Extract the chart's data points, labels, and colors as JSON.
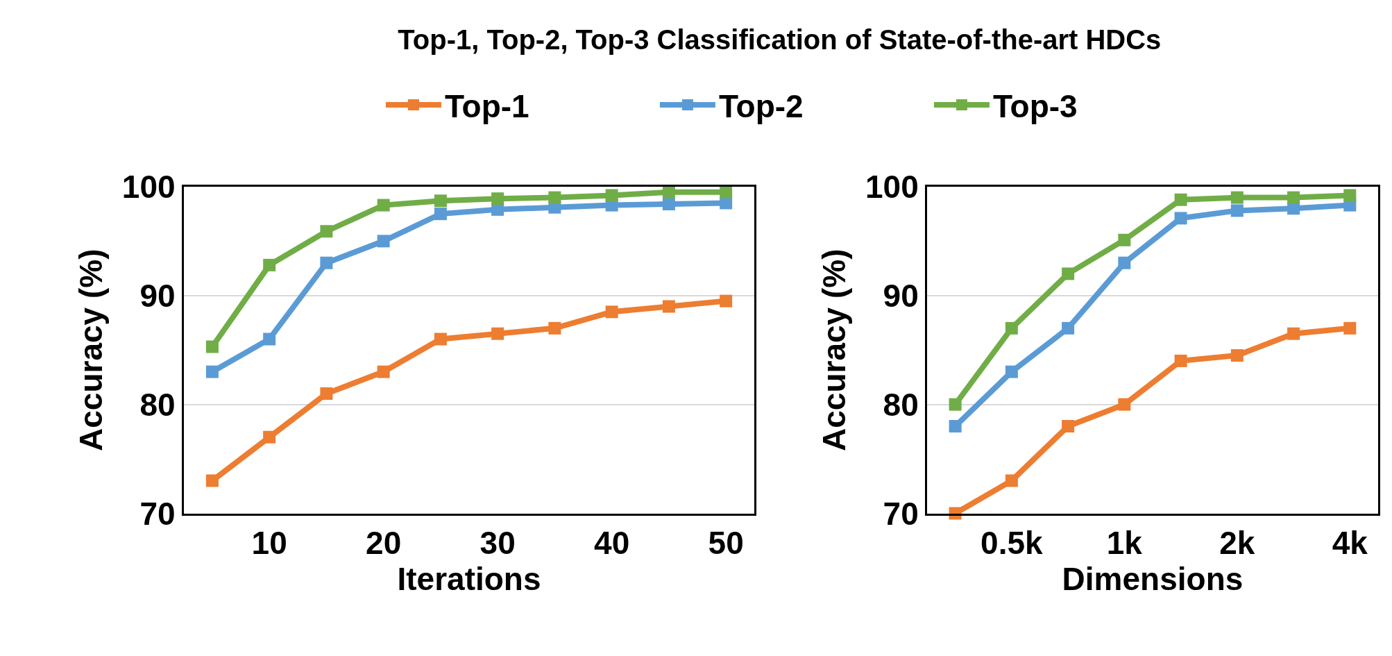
{
  "chart_data": [
    {
      "type": "line",
      "title": "Top-1, Top-2, Top-3 Classification of State-of-the-art HDCs",
      "xlabel": "Iterations",
      "ylabel": "Accuracy (%)",
      "x": [
        5,
        10,
        15,
        20,
        25,
        30,
        35,
        40,
        45,
        50
      ],
      "xlim": [
        2.5,
        52.5
      ],
      "xticks": [
        10,
        20,
        30,
        40,
        50
      ],
      "ylim": [
        70,
        100
      ],
      "yticks": [
        70,
        80,
        90,
        100
      ],
      "grid": "y",
      "legend": "top",
      "marker": "square",
      "line_style": "solid",
      "series": [
        {
          "name": "Top-1",
          "color": "#ed7d31",
          "values": [
            73,
            77,
            81,
            83,
            86,
            86.5,
            87,
            88.5,
            89,
            89.5
          ]
        },
        {
          "name": "Top-2",
          "color": "#5b9bd5",
          "values": [
            83,
            86,
            93,
            95,
            97.5,
            97.9,
            98.1,
            98.3,
            98.4,
            98.5
          ]
        },
        {
          "name": "Top-3",
          "color": "#70ad47",
          "values": [
            85.3,
            92.8,
            95.9,
            98.3,
            98.7,
            98.9,
            99,
            99.2,
            99.5,
            99.5
          ]
        }
      ]
    },
    {
      "type": "line",
      "xlabel": "Dimensions",
      "ylabel": "Accuracy (%)",
      "categories": [
        null,
        "0.5k",
        null,
        "1k",
        null,
        "2k",
        null,
        "4k"
      ],
      "ylim": [
        70,
        100
      ],
      "yticks": [
        70,
        80,
        90,
        100
      ],
      "grid": "y",
      "marker": "square",
      "line_style": "solid",
      "series": [
        {
          "color": "#ed7d31",
          "values": [
            70,
            73,
            78,
            80,
            84,
            84.5,
            86.5,
            87
          ]
        },
        {
          "color": "#5b9bd5",
          "values": [
            78,
            83,
            87,
            93,
            97.1,
            97.8,
            98,
            98.3
          ]
        },
        {
          "color": "#70ad47",
          "values": [
            80,
            87,
            92,
            95.1,
            98.8,
            99,
            99,
            99.2
          ]
        }
      ]
    }
  ]
}
